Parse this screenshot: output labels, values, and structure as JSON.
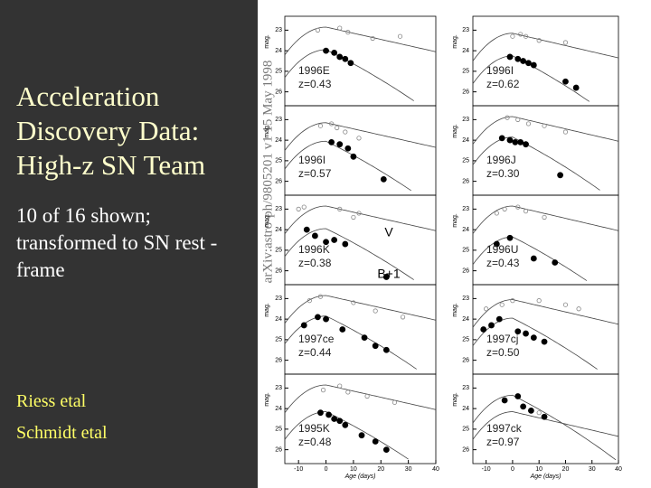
{
  "slide": {
    "title": "Acceleration Discovery Data: High-z SN Team",
    "body": "10 of 16 shown; transformed to SN rest -frame",
    "credits": [
      "Riess etal",
      "Schmidt etal"
    ],
    "stamp": "arXiv:astro-ph/9805201 v1 15 May 1998",
    "legend": [
      "V",
      "B+1"
    ]
  },
  "figure": {
    "x_label": "Age (days)",
    "y_label": "mag.",
    "xlim": [
      -15,
      40
    ],
    "xticks": [
      -10,
      0,
      10,
      20,
      30,
      40
    ],
    "panels": [
      {
        "name": "1996E",
        "z": "z=0.43",
        "ylim": [
          22.5,
          26.5
        ],
        "yticks": [
          23,
          24,
          25,
          26
        ],
        "v": {
          "x": [
            -3,
            5,
            8,
            17,
            27
          ],
          "y": [
            23.0,
            22.9,
            23.1,
            23.4,
            23.3
          ]
        },
        "b": {
          "x": [
            0,
            3,
            5,
            7,
            9
          ],
          "y": [
            24.0,
            24.1,
            24.3,
            24.4,
            24.6
          ]
        }
      },
      {
        "name": "1996I",
        "z": "z=0.57",
        "ylim": [
          22.5,
          26.5
        ],
        "yticks": [
          23,
          24,
          25,
          26
        ],
        "v": {
          "x": [
            -2,
            2,
            4,
            7,
            12
          ],
          "y": [
            23.3,
            23.2,
            23.4,
            23.6,
            23.9
          ]
        },
        "b": {
          "x": [
            2,
            5,
            8,
            10,
            21
          ],
          "y": [
            24.1,
            24.2,
            24.4,
            24.8,
            25.9
          ]
        }
      },
      {
        "name": "1996K",
        "z": "z=0.38",
        "ylim": [
          22.5,
          26.5
        ],
        "yticks": [
          23,
          24,
          25,
          26
        ],
        "v": {
          "x": [
            -10,
            -8,
            5,
            10,
            12
          ],
          "y": [
            23.0,
            22.9,
            23.0,
            23.4,
            23.2
          ]
        },
        "b": {
          "x": [
            -7,
            -4,
            0,
            3,
            7,
            22
          ],
          "y": [
            24.0,
            24.3,
            24.6,
            24.5,
            24.7,
            26.3
          ]
        }
      },
      {
        "name": "1997ce",
        "z": "z=0.44",
        "ylim": [
          22.5,
          26.5
        ],
        "yticks": [
          23,
          24,
          25,
          26
        ],
        "v": {
          "x": [
            -6,
            -2,
            10,
            18,
            28
          ],
          "y": [
            23.1,
            22.9,
            23.2,
            23.6,
            23.9
          ]
        },
        "b": {
          "x": [
            -8,
            -3,
            0,
            6,
            14,
            18,
            22
          ],
          "y": [
            24.3,
            23.9,
            24.0,
            24.5,
            24.9,
            25.3,
            25.5
          ]
        }
      },
      {
        "name": "1995K",
        "z": "z=0.48",
        "ylim": [
          22.5,
          26.5
        ],
        "yticks": [
          23,
          24,
          25,
          26
        ],
        "v": {
          "x": [
            -1,
            5,
            8,
            15,
            25
          ],
          "y": [
            23.1,
            22.9,
            23.2,
            23.4,
            23.7
          ]
        },
        "b": {
          "x": [
            -2,
            1,
            3,
            5,
            7,
            13,
            18,
            22
          ],
          "y": [
            24.2,
            24.3,
            24.5,
            24.6,
            24.8,
            25.3,
            25.6,
            26.0
          ]
        }
      },
      {
        "name": "1996I",
        "z": "z=0.62",
        "ylim": [
          22.5,
          26.5
        ],
        "yticks": [
          23,
          24,
          25,
          26
        ],
        "v": {
          "x": [
            0,
            3,
            5,
            10,
            20
          ],
          "y": [
            23.3,
            23.2,
            23.3,
            23.5,
            23.6
          ]
        },
        "b": {
          "x": [
            -1,
            2,
            4,
            6,
            8,
            20,
            24
          ],
          "y": [
            24.3,
            24.4,
            24.5,
            24.6,
            24.7,
            25.5,
            25.8
          ]
        }
      },
      {
        "name": "1996J",
        "z": "z=0.30",
        "ylim": [
          22.5,
          26.5
        ],
        "yticks": [
          23,
          24,
          25,
          26
        ],
        "v": {
          "x": [
            -2,
            2,
            6,
            12,
            20
          ],
          "y": [
            22.9,
            23.0,
            23.2,
            23.3,
            23.6
          ]
        },
        "b": {
          "x": [
            -4,
            -1,
            1,
            3,
            5,
            18
          ],
          "y": [
            23.9,
            24.0,
            24.1,
            24.1,
            24.2,
            25.7
          ]
        }
      },
      {
        "name": "1996U",
        "z": "z=0.43",
        "ylim": [
          22.5,
          26.5
        ],
        "yticks": [
          23,
          24,
          25,
          26
        ],
        "v": {
          "x": [
            -6,
            -3,
            2,
            5,
            12
          ],
          "y": [
            23.2,
            23.0,
            22.9,
            23.1,
            23.4
          ]
        },
        "b": {
          "x": [
            -6,
            -1,
            8,
            16
          ],
          "y": [
            24.7,
            24.4,
            25.4,
            25.6
          ]
        }
      },
      {
        "name": "1997cj",
        "z": "z=0.50",
        "ylim": [
          22.5,
          26.5
        ],
        "yticks": [
          23,
          24,
          25,
          26
        ],
        "v": {
          "x": [
            -10,
            -4,
            0,
            10,
            20,
            25
          ],
          "y": [
            23.5,
            23.3,
            23.1,
            23.1,
            23.3,
            23.5
          ]
        },
        "b": {
          "x": [
            -11,
            -8,
            -5,
            2,
            5,
            8,
            12
          ],
          "y": [
            24.5,
            24.3,
            24.0,
            24.6,
            24.7,
            24.9,
            25.1
          ]
        }
      },
      {
        "name": "1997ck",
        "z": "z=0.97",
        "ylim": [
          22.5,
          26.5
        ],
        "yticks": [
          23,
          24,
          25,
          26
        ],
        "v": {
          "x": [
            10
          ],
          "y": [
            24.2
          ]
        },
        "b": {
          "x": [
            -3,
            2,
            4,
            7,
            12
          ],
          "y": [
            23.6,
            23.4,
            23.9,
            24.1,
            24.4
          ]
        }
      }
    ]
  }
}
